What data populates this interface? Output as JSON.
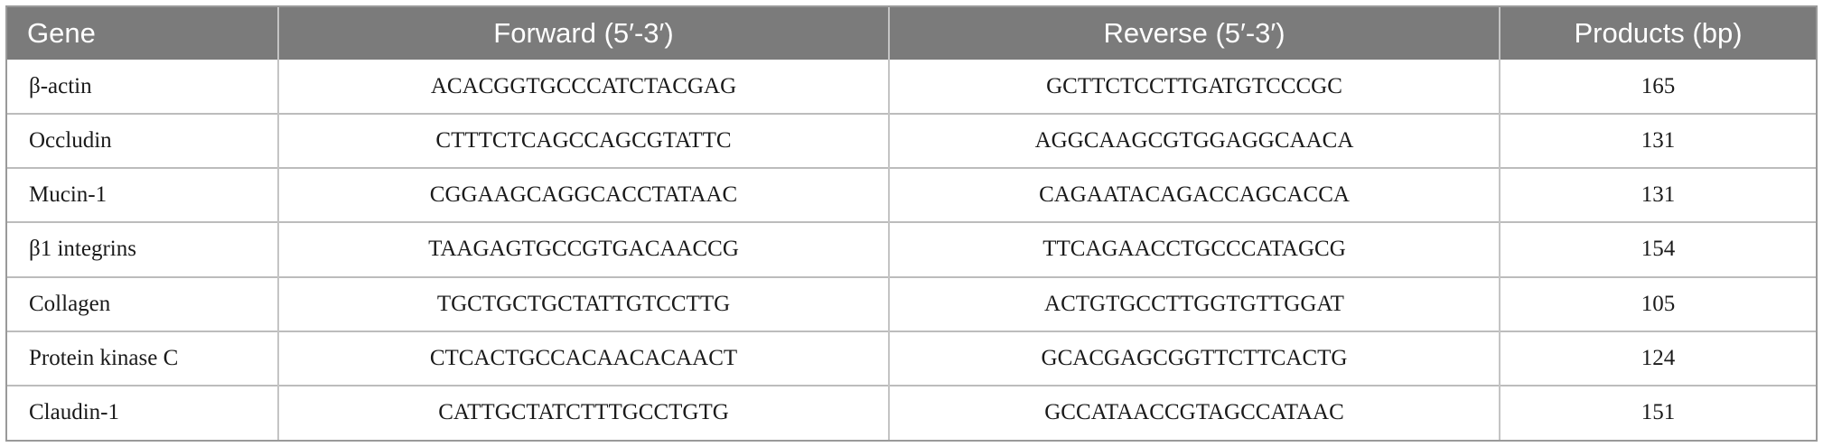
{
  "table": {
    "headers": {
      "gene": "Gene",
      "forward": "Forward (5′-3′)",
      "reverse": "Reverse (5′-3′)",
      "products": "Products (bp)"
    },
    "rows": [
      {
        "gene": "β-actin",
        "forward": "ACACGGTGCCCATCTACGAG",
        "reverse": "GCTTCTCCTTGATGTCCCGC",
        "products": "165"
      },
      {
        "gene": "Occludin",
        "forward": "CTTTCTCAGCCAGCGTATTC",
        "reverse": "AGGCAAGCGTGGAGGCAACA",
        "products": "131"
      },
      {
        "gene": "Mucin-1",
        "forward": "CGGAAGCAGGCACCTATAAC",
        "reverse": "CAGAATACAGACCAGCACCA",
        "products": "131"
      },
      {
        "gene": "β1 integrins",
        "forward": "TAAGAGTGCCGTGACAACCG",
        "reverse": "TTCAGAACCTGCCCATAGCG",
        "products": "154"
      },
      {
        "gene": "Collagen",
        "forward": "TGCTGCTGCTATTGTCCTTG",
        "reverse": "ACTGTGCCTTGGTGTTGGAT",
        "products": "105"
      },
      {
        "gene": "Protein kinase C",
        "forward": "CTCACTGCCACAACACAACT",
        "reverse": "GCACGAGCGGTTCTTCACTG",
        "products": "124"
      },
      {
        "gene": "Claudin-1",
        "forward": "CATTGCTATCTTTGCCTGTG",
        "reverse": "GCCATAACCGTAGCCATAAC",
        "products": "151"
      }
    ]
  },
  "colors": {
    "header_background": "#7b7b7b",
    "header_text": "#ffffff",
    "grid_lines": "#bcbcbc"
  }
}
